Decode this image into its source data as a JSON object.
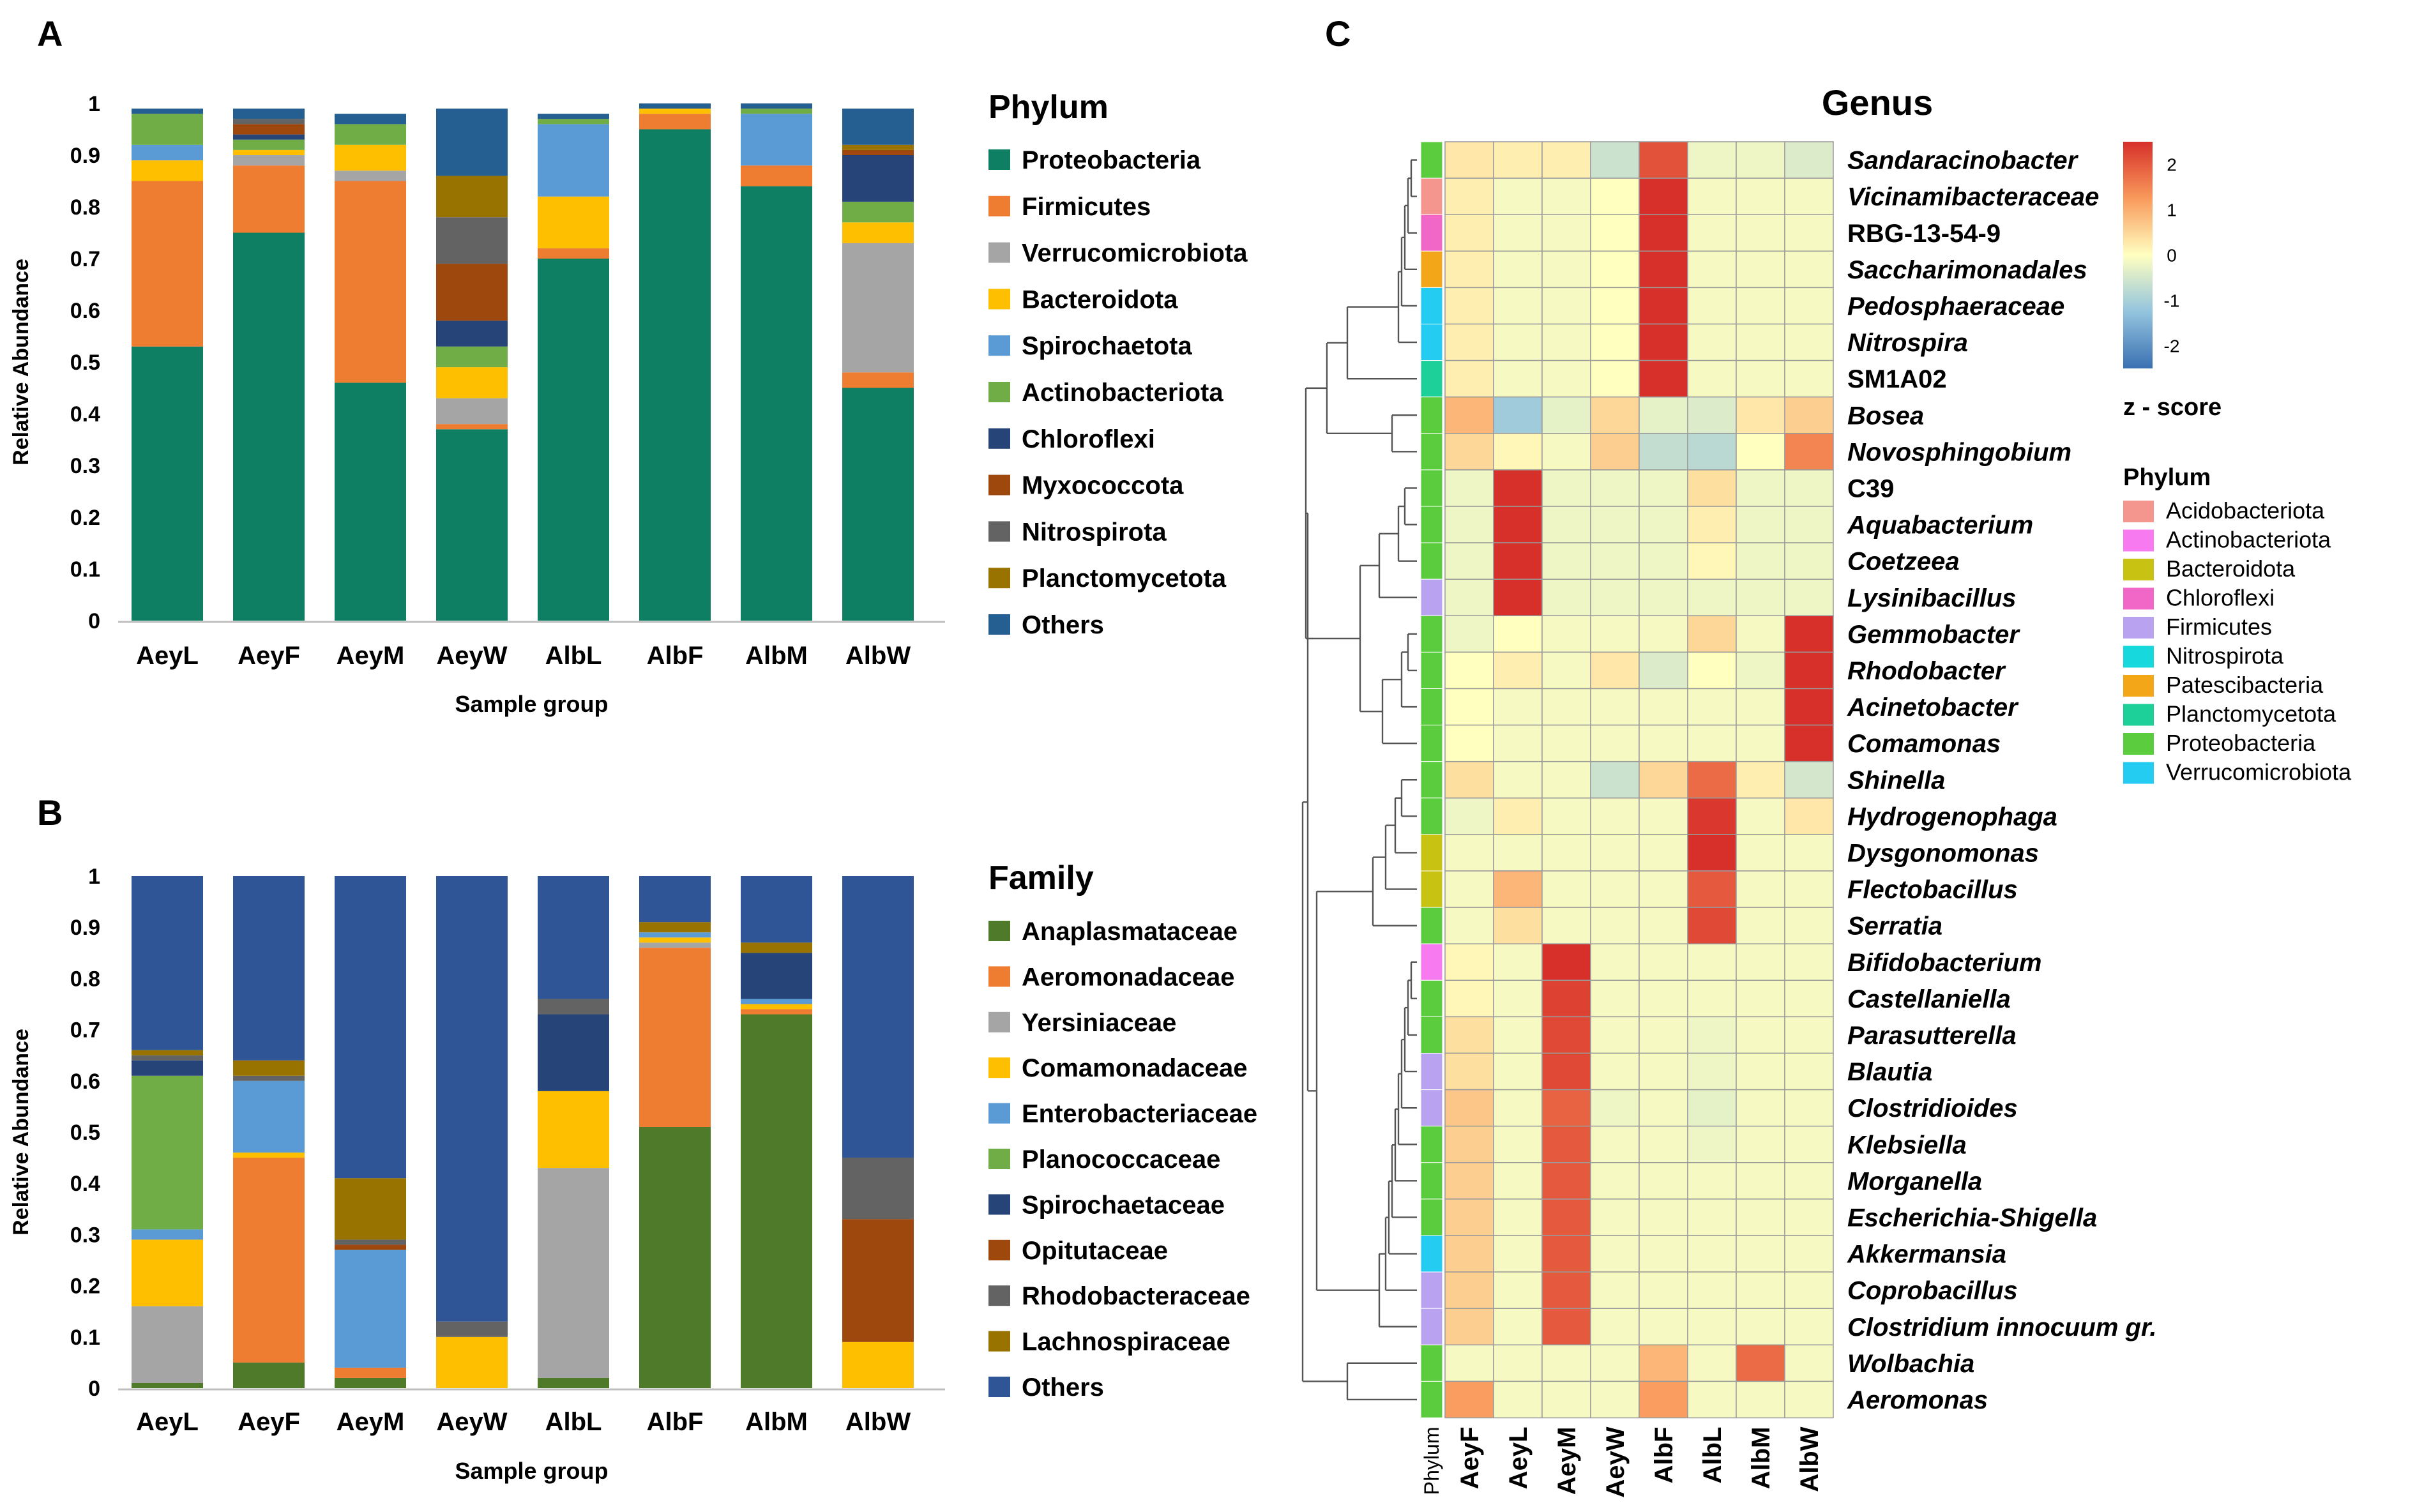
{
  "panels": {
    "a": "A",
    "b": "B",
    "c": "C"
  },
  "colors": {
    "phylum": {
      "Proteobacteria": "#0f7f63",
      "Firmicutes": "#ee7d31",
      "Verrucomicrobiota": "#a5a5a5",
      "Bacteroidota": "#fdbf00",
      "Spirochaetota": "#5b9bd5",
      "Actinobacteriota": "#70ad47",
      "Chloroflexi": "#264478",
      "Myxococcota": "#9e480e",
      "Nitrospirota": "#636363",
      "Planctomycetota": "#997300",
      "Others": "#255e91"
    },
    "family": {
      "Anaplasmataceae": "#4f7a29",
      "Aeromonadaceae": "#ee7d31",
      "Yersiniaceae": "#a5a5a5",
      "Comamonadaceae": "#fdbf00",
      "Enterobacteriaceae": "#5b9bd5",
      "Planococcaceae": "#70ad47",
      "Spirochaetaceae": "#264478",
      "Opitutaceae": "#9e480e",
      "Rhodobacteraceae": "#636363",
      "Lachnospiraceae": "#997300",
      "Others": "#2f5597"
    },
    "heat_phylum": {
      "Acidobacteriota": "#f4958e",
      "Actinobacteriota": "#f77af0",
      "Bacteroidota": "#c8c213",
      "Chloroflexi": "#f067c8",
      "Firmicutes": "#b9a3f1",
      "Nitrospirota": "#17d8dc",
      "Patescibacteria": "#f2a618",
      "Planctomycetota": "#1dcf98",
      "Proteobacteria": "#5ccc3f",
      "Verrucomicrobiota": "#23ccf0"
    }
  },
  "chart_data": [
    {
      "type": "bar",
      "stacked": true,
      "title": "",
      "panel": "A",
      "xlabel": "Sample group",
      "ylabel": "Relative Abundance",
      "ylim": [
        0,
        1
      ],
      "yticks": [
        "0",
        "0.1",
        "0.2",
        "0.3",
        "0.4",
        "0.5",
        "0.6",
        "0.7",
        "0.8",
        "0.9",
        "1"
      ],
      "categories": [
        "AeyL",
        "AeyF",
        "AeyM",
        "AeyW",
        "AlbL",
        "AlbF",
        "AlbM",
        "AlbW"
      ],
      "legend_title": "Phylum",
      "series": [
        {
          "name": "Proteobacteria",
          "values": [
            0.53,
            0.75,
            0.46,
            0.37,
            0.7,
            0.95,
            0.84,
            0.45
          ]
        },
        {
          "name": "Firmicutes",
          "values": [
            0.32,
            0.13,
            0.39,
            0.01,
            0.02,
            0.03,
            0.04,
            0.03
          ]
        },
        {
          "name": "Verrucomicrobiota",
          "values": [
            0.0,
            0.02,
            0.02,
            0.05,
            0.0,
            0.0,
            0.0,
            0.25
          ]
        },
        {
          "name": "Bacteroidota",
          "values": [
            0.04,
            0.01,
            0.05,
            0.06,
            0.1,
            0.01,
            0.0,
            0.04
          ]
        },
        {
          "name": "Spirochaetota",
          "values": [
            0.03,
            0.0,
            0.0,
            0.0,
            0.14,
            0.0,
            0.1,
            0.0
          ]
        },
        {
          "name": "Actinobacteriota",
          "values": [
            0.06,
            0.02,
            0.04,
            0.04,
            0.01,
            0.0,
            0.01,
            0.04
          ]
        },
        {
          "name": "Chloroflexi",
          "values": [
            0.0,
            0.01,
            0.0,
            0.05,
            0.0,
            0.0,
            0.0,
            0.09
          ]
        },
        {
          "name": "Myxococcota",
          "values": [
            0.0,
            0.02,
            0.0,
            0.11,
            0.0,
            0.0,
            0.0,
            0.01
          ]
        },
        {
          "name": "Nitrospirota",
          "values": [
            0.0,
            0.01,
            0.0,
            0.09,
            0.0,
            0.0,
            0.0,
            0.0
          ]
        },
        {
          "name": "Planctomycetota",
          "values": [
            0.0,
            0.0,
            0.0,
            0.08,
            0.0,
            0.0,
            0.0,
            0.01
          ]
        },
        {
          "name": "Others",
          "values": [
            0.01,
            0.02,
            0.02,
            0.13,
            0.01,
            0.01,
            0.01,
            0.07
          ]
        }
      ]
    },
    {
      "type": "bar",
      "stacked": true,
      "title": "",
      "panel": "B",
      "xlabel": "Sample group",
      "ylabel": "Relative Abundance",
      "ylim": [
        0,
        1
      ],
      "yticks": [
        "0",
        "0.1",
        "0.2",
        "0.3",
        "0.4",
        "0.5",
        "0.6",
        "0.7",
        "0.8",
        "0.9",
        "1"
      ],
      "categories": [
        "AeyL",
        "AeyF",
        "AeyM",
        "AeyW",
        "AlbL",
        "AlbF",
        "AlbM",
        "AlbW"
      ],
      "legend_title": "Family",
      "series": [
        {
          "name": "Anaplasmataceae",
          "values": [
            0.01,
            0.05,
            0.02,
            0.0,
            0.02,
            0.51,
            0.73,
            0.0
          ]
        },
        {
          "name": "Aeromonadaceae",
          "values": [
            0.0,
            0.4,
            0.02,
            0.0,
            0.0,
            0.35,
            0.01,
            0.0
          ]
        },
        {
          "name": "Yersiniaceae",
          "values": [
            0.15,
            0.0,
            0.0,
            0.0,
            0.41,
            0.01,
            0.0,
            0.0
          ]
        },
        {
          "name": "Comamonadaceae",
          "values": [
            0.13,
            0.01,
            0.0,
            0.1,
            0.15,
            0.01,
            0.01,
            0.09
          ]
        },
        {
          "name": "Enterobacteriaceae",
          "values": [
            0.02,
            0.14,
            0.23,
            0.0,
            0.0,
            0.01,
            0.01,
            0.0
          ]
        },
        {
          "name": "Planococcaceae",
          "values": [
            0.3,
            0.0,
            0.0,
            0.0,
            0.0,
            0.0,
            0.0,
            0.0
          ]
        },
        {
          "name": "Spirochaetaceae",
          "values": [
            0.03,
            0.0,
            0.0,
            0.0,
            0.15,
            0.0,
            0.09,
            0.0
          ]
        },
        {
          "name": "Opitutaceae",
          "values": [
            0.0,
            0.0,
            0.01,
            0.0,
            0.0,
            0.0,
            0.0,
            0.24
          ]
        },
        {
          "name": "Rhodobacteraceae",
          "values": [
            0.01,
            0.01,
            0.01,
            0.03,
            0.03,
            0.0,
            0.0,
            0.12
          ]
        },
        {
          "name": "Lachnospiraceae",
          "values": [
            0.01,
            0.03,
            0.12,
            0.0,
            0.0,
            0.02,
            0.02,
            0.0
          ]
        },
        {
          "name": "Others",
          "values": [
            0.34,
            0.36,
            0.59,
            0.87,
            0.24,
            0.09,
            0.13,
            0.55
          ]
        }
      ]
    },
    {
      "type": "heatmap",
      "panel": "C",
      "title": "Genus",
      "columns": [
        "AeyF",
        "AeyL",
        "AeyM",
        "AeyW",
        "AlbF",
        "AlbL",
        "AlbM",
        "AlbW"
      ],
      "annotation_label": "Phylum",
      "colorbar_title": "z - score",
      "colorbar_ticks": [
        "2",
        "1",
        "0",
        "-1",
        "-2"
      ],
      "value_range": [
        -2.5,
        2.5
      ],
      "rows": [
        {
          "genus": "Sandaracinobacter",
          "italic": true,
          "phylum": "Proteobacteria",
          "values": [
            0.3,
            0.2,
            0.2,
            -0.6,
            2.1,
            -0.2,
            -0.2,
            -0.4
          ]
        },
        {
          "genus": "Vicinamibacteraceae",
          "italic": true,
          "phylum": "Acidobacteriota",
          "values": [
            0.2,
            -0.1,
            -0.1,
            0.0,
            2.5,
            -0.1,
            -0.1,
            -0.1
          ]
        },
        {
          "genus": "RBG-13-54-9",
          "italic": false,
          "phylum": "Chloroflexi",
          "values": [
            0.2,
            -0.1,
            -0.1,
            0.0,
            2.5,
            -0.1,
            -0.1,
            -0.1
          ]
        },
        {
          "genus": "Saccharimonadales",
          "italic": true,
          "phylum": "Patescibacteria",
          "values": [
            0.2,
            -0.1,
            -0.1,
            0.0,
            2.5,
            -0.1,
            -0.1,
            -0.1
          ]
        },
        {
          "genus": "Pedosphaeraceae",
          "italic": true,
          "phylum": "Verrucomicrobiota",
          "values": [
            0.2,
            -0.1,
            -0.1,
            0.0,
            2.5,
            -0.1,
            -0.1,
            -0.1
          ]
        },
        {
          "genus": "Nitrospira",
          "italic": true,
          "phylum": "Verrucomicrobiota",
          "values": [
            0.2,
            -0.1,
            -0.1,
            0.0,
            2.5,
            -0.1,
            -0.1,
            -0.1
          ]
        },
        {
          "genus": "SM1A02",
          "italic": false,
          "phylum": "Planctomycetota",
          "values": [
            0.2,
            -0.1,
            -0.1,
            0.0,
            2.5,
            -0.1,
            -0.1,
            -0.1
          ]
        },
        {
          "genus": "Bosea",
          "italic": true,
          "phylum": "Proteobacteria",
          "values": [
            0.9,
            -1.1,
            -0.3,
            0.5,
            -0.3,
            -0.4,
            0.3,
            0.6
          ]
        },
        {
          "genus": "Novosphingobium",
          "italic": true,
          "phylum": "Proteobacteria",
          "values": [
            0.5,
            0.1,
            -0.1,
            0.6,
            -0.7,
            -0.8,
            0.0,
            1.5
          ]
        },
        {
          "genus": "C39",
          "italic": false,
          "phylum": "Proteobacteria",
          "values": [
            -0.2,
            2.5,
            -0.2,
            -0.2,
            -0.2,
            0.4,
            -0.2,
            -0.2
          ]
        },
        {
          "genus": "Aquabacterium",
          "italic": true,
          "phylum": "Proteobacteria",
          "values": [
            -0.2,
            2.5,
            -0.2,
            -0.2,
            -0.2,
            0.2,
            -0.2,
            -0.2
          ]
        },
        {
          "genus": "Coetzeea",
          "italic": true,
          "phylum": "Proteobacteria",
          "values": [
            -0.2,
            2.5,
            -0.2,
            -0.2,
            -0.2,
            0.1,
            -0.2,
            -0.2
          ]
        },
        {
          "genus": "Lysinibacillus",
          "italic": true,
          "phylum": "Firmicutes",
          "values": [
            -0.2,
            2.5,
            -0.2,
            -0.2,
            -0.2,
            -0.2,
            -0.2,
            -0.2
          ]
        },
        {
          "genus": "Gemmobacter",
          "italic": true,
          "phylum": "Proteobacteria",
          "values": [
            -0.2,
            0.0,
            -0.1,
            -0.1,
            -0.1,
            0.5,
            -0.1,
            2.5
          ]
        },
        {
          "genus": "Rhodobacter",
          "italic": true,
          "phylum": "Proteobacteria",
          "values": [
            0.0,
            0.2,
            -0.1,
            0.3,
            -0.4,
            0.0,
            -0.2,
            2.5
          ]
        },
        {
          "genus": "Acinetobacter",
          "italic": true,
          "phylum": "Proteobacteria",
          "values": [
            0.0,
            -0.1,
            -0.1,
            -0.1,
            -0.1,
            -0.1,
            -0.1,
            2.5
          ]
        },
        {
          "genus": "Comamonas",
          "italic": true,
          "phylum": "Proteobacteria",
          "values": [
            0.0,
            -0.1,
            -0.1,
            -0.1,
            -0.1,
            -0.1,
            -0.1,
            2.5
          ]
        },
        {
          "genus": "Shinella",
          "italic": true,
          "phylum": "Proteobacteria",
          "values": [
            0.4,
            -0.1,
            -0.1,
            -0.6,
            0.5,
            1.8,
            0.2,
            -0.5
          ]
        },
        {
          "genus": "Hydrogenophaga",
          "italic": true,
          "phylum": "Proteobacteria",
          "values": [
            -0.2,
            0.2,
            -0.1,
            -0.1,
            -0.1,
            2.4,
            -0.1,
            0.3
          ]
        },
        {
          "genus": "Dysgonomonas",
          "italic": true,
          "phylum": "Bacteroidota",
          "values": [
            -0.1,
            -0.1,
            -0.1,
            -0.1,
            -0.1,
            2.5,
            -0.1,
            -0.1
          ]
        },
        {
          "genus": "Flectobacillus",
          "italic": true,
          "phylum": "Bacteroidota",
          "values": [
            -0.1,
            0.9,
            -0.1,
            -0.1,
            -0.1,
            2.0,
            -0.1,
            -0.1
          ]
        },
        {
          "genus": "Serratia",
          "italic": true,
          "phylum": "Proteobacteria",
          "values": [
            -0.1,
            0.4,
            -0.1,
            -0.1,
            -0.1,
            2.2,
            -0.1,
            -0.1
          ]
        },
        {
          "genus": "Bifidobacterium",
          "italic": true,
          "phylum": "Actinobacteriota",
          "values": [
            0.1,
            -0.1,
            2.5,
            -0.1,
            -0.1,
            -0.1,
            -0.1,
            -0.1
          ]
        },
        {
          "genus": "Castellaniella",
          "italic": true,
          "phylum": "Proteobacteria",
          "values": [
            0.1,
            -0.1,
            2.3,
            -0.1,
            -0.1,
            -0.1,
            -0.1,
            -0.1
          ]
        },
        {
          "genus": "Parasutterella",
          "italic": true,
          "phylum": "Proteobacteria",
          "values": [
            0.4,
            -0.1,
            2.2,
            -0.1,
            -0.1,
            -0.2,
            -0.1,
            -0.1
          ]
        },
        {
          "genus": "Blautia",
          "italic": true,
          "phylum": "Firmicutes",
          "values": [
            0.4,
            -0.1,
            2.2,
            -0.1,
            -0.1,
            -0.2,
            -0.1,
            -0.1
          ]
        },
        {
          "genus": "Clostridioides",
          "italic": true,
          "phylum": "Firmicutes",
          "values": [
            0.7,
            -0.1,
            1.9,
            -0.2,
            -0.1,
            -0.3,
            -0.1,
            -0.1
          ]
        },
        {
          "genus": "Klebsiella",
          "italic": true,
          "phylum": "Proteobacteria",
          "values": [
            0.6,
            -0.1,
            2.0,
            -0.1,
            -0.1,
            -0.2,
            -0.1,
            -0.1
          ]
        },
        {
          "genus": "Morganella",
          "italic": true,
          "phylum": "Proteobacteria",
          "values": [
            0.6,
            -0.1,
            2.0,
            -0.1,
            -0.1,
            -0.1,
            -0.1,
            -0.1
          ]
        },
        {
          "genus": "Escherichia-Shigella",
          "italic": true,
          "phylum": "Proteobacteria",
          "values": [
            0.6,
            -0.1,
            2.0,
            -0.1,
            -0.1,
            -0.1,
            -0.1,
            -0.1
          ]
        },
        {
          "genus": "Akkermansia",
          "italic": true,
          "phylum": "Verrucomicrobiota",
          "values": [
            0.6,
            -0.1,
            2.0,
            -0.1,
            -0.1,
            -0.1,
            -0.1,
            -0.1
          ]
        },
        {
          "genus": "Coprobacillus",
          "italic": true,
          "phylum": "Firmicutes",
          "values": [
            0.6,
            -0.1,
            2.0,
            -0.1,
            -0.1,
            -0.1,
            -0.1,
            -0.1
          ]
        },
        {
          "genus": "Clostridium innocuum gr.",
          "italic": true,
          "phylum": "Firmicutes",
          "values": [
            0.6,
            -0.1,
            2.0,
            -0.1,
            -0.1,
            -0.1,
            -0.1,
            -0.1
          ]
        },
        {
          "genus": "Wolbachia",
          "italic": true,
          "phylum": "Proteobacteria",
          "values": [
            -0.1,
            -0.1,
            -0.1,
            -0.1,
            0.9,
            -0.1,
            1.8,
            -0.1
          ]
        },
        {
          "genus": "Aeromonas",
          "italic": true,
          "phylum": "Proteobacteria",
          "values": [
            1.2,
            -0.1,
            -0.1,
            -0.1,
            1.2,
            -0.1,
            -0.1,
            -0.1
          ]
        }
      ],
      "legend_title": "Phylum",
      "legend": [
        "Acidobacteriota",
        "Actinobacteriota",
        "Bacteroidota",
        "Chloroflexi",
        "Firmicutes",
        "Nitrospirota",
        "Patescibacteria",
        "Planctomycetota",
        "Proteobacteria",
        "Verrucomicrobiota"
      ]
    }
  ]
}
